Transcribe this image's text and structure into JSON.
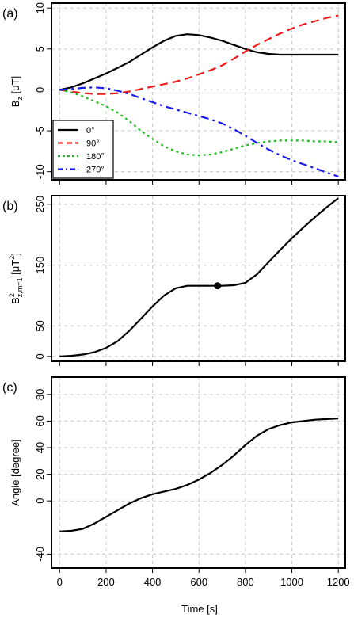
{
  "x_axis_label": "Time [s]",
  "x_ticks": [
    0,
    200,
    400,
    600,
    800,
    1000,
    1200
  ],
  "colors": {
    "0": "#000000",
    "90": "#ee1c1c",
    "180": "#22bb22",
    "270": "#1a1aee",
    "grid": "#c8c8c8"
  },
  "chart_data": [
    {
      "panel": "(a)",
      "type": "line",
      "ylabel": "B_z [μT]",
      "ylabel_main": "B",
      "ylabel_sub": "z",
      "ylabel_rest": " [μT]",
      "xlim": [
        0,
        1200
      ],
      "ylim": [
        -10,
        10
      ],
      "yticks": [
        -10,
        -5,
        0,
        5,
        10
      ],
      "grid": true,
      "legend_position": "bottom-left",
      "series": [
        {
          "name": "0°",
          "color": "#000000",
          "dash": "solid",
          "x": [
            0,
            50,
            100,
            150,
            200,
            250,
            300,
            350,
            400,
            450,
            500,
            550,
            600,
            650,
            700,
            750,
            800,
            850,
            900,
            950,
            1000,
            1050,
            1100,
            1150,
            1200
          ],
          "y": [
            0,
            0.3,
            0.8,
            1.4,
            2.0,
            2.7,
            3.4,
            4.3,
            5.2,
            6.0,
            6.6,
            6.8,
            6.7,
            6.4,
            6.0,
            5.5,
            5.0,
            4.6,
            4.4,
            4.3,
            4.3,
            4.3,
            4.3,
            4.3,
            4.3
          ]
        },
        {
          "name": "90°",
          "color": "#ee1c1c",
          "dash": "dashed",
          "x": [
            0,
            50,
            100,
            150,
            200,
            250,
            300,
            350,
            400,
            450,
            500,
            550,
            600,
            650,
            700,
            750,
            800,
            850,
            900,
            950,
            1000,
            1050,
            1100,
            1150,
            1200
          ],
          "y": [
            0,
            -0.2,
            -0.4,
            -0.5,
            -0.5,
            -0.4,
            -0.2,
            0.1,
            0.4,
            0.7,
            1.0,
            1.4,
            1.9,
            2.4,
            3.0,
            3.8,
            4.7,
            5.5,
            6.2,
            6.9,
            7.5,
            8.0,
            8.4,
            8.8,
            9.1
          ]
        },
        {
          "name": "180°",
          "color": "#22bb22",
          "dash": "dotted",
          "x": [
            0,
            50,
            100,
            150,
            200,
            250,
            300,
            350,
            400,
            450,
            500,
            550,
            600,
            650,
            700,
            750,
            800,
            850,
            900,
            950,
            1000,
            1050,
            1100,
            1150,
            1200
          ],
          "y": [
            0,
            -0.3,
            -0.8,
            -1.4,
            -2.0,
            -2.8,
            -3.8,
            -5.0,
            -6.0,
            -6.9,
            -7.5,
            -7.9,
            -8.0,
            -7.9,
            -7.6,
            -7.2,
            -6.8,
            -6.5,
            -6.3,
            -6.2,
            -6.2,
            -6.2,
            -6.3,
            -6.3,
            -6.4
          ]
        },
        {
          "name": "270°",
          "color": "#1a1aee",
          "dash": "dashdot",
          "x": [
            0,
            50,
            100,
            150,
            200,
            250,
            300,
            350,
            400,
            450,
            500,
            550,
            600,
            650,
            700,
            750,
            800,
            850,
            900,
            950,
            1000,
            1050,
            1100,
            1150,
            1200
          ],
          "y": [
            0,
            0.1,
            0.25,
            0.3,
            0.2,
            -0.1,
            -0.5,
            -1.0,
            -1.5,
            -2.0,
            -2.4,
            -2.8,
            -3.2,
            -3.6,
            -4.1,
            -4.8,
            -5.6,
            -6.5,
            -7.3,
            -8.0,
            -8.6,
            -9.1,
            -9.6,
            -10.1,
            -10.6
          ]
        }
      ]
    },
    {
      "panel": "(b)",
      "type": "line",
      "ylabel": "B²_z,m=1 [μT²]",
      "ylabel_main": "B",
      "ylabel_sup": "2",
      "ylabel_sub": "z,m=1",
      "ylabel_rest": " [μT",
      "ylabel_rest_sup": "2",
      "ylabel_close": "]",
      "xlim": [
        0,
        1200
      ],
      "ylim": [
        0,
        250
      ],
      "yticks": [
        0,
        50,
        150,
        250
      ],
      "grid": true,
      "series": [
        {
          "name": "",
          "color": "#000000",
          "dash": "solid",
          "x": [
            0,
            50,
            100,
            150,
            200,
            250,
            300,
            350,
            400,
            450,
            500,
            550,
            600,
            650,
            700,
            750,
            800,
            850,
            900,
            950,
            1000,
            1050,
            1100,
            1150,
            1200
          ],
          "y": [
            0,
            1,
            3,
            7,
            14,
            25,
            42,
            62,
            82,
            100,
            112,
            116,
            116,
            116,
            116,
            117,
            121,
            135,
            155,
            175,
            194,
            212,
            229,
            245,
            260
          ]
        }
      ],
      "marker": {
        "x": 680,
        "y": 116
      }
    },
    {
      "panel": "(c)",
      "type": "line",
      "ylabel": "Angle [degree]",
      "xlim": [
        0,
        1200
      ],
      "ylim": [
        -40,
        80
      ],
      "yticks": [
        -40,
        0,
        20,
        40,
        60,
        80
      ],
      "grid": true,
      "series": [
        {
          "name": "",
          "color": "#000000",
          "dash": "solid",
          "x": [
            0,
            50,
            100,
            150,
            200,
            250,
            300,
            350,
            400,
            450,
            500,
            550,
            600,
            650,
            700,
            750,
            800,
            850,
            900,
            950,
            1000,
            1050,
            1100,
            1150,
            1200
          ],
          "y": [
            -23,
            -22.5,
            -21,
            -17,
            -12,
            -7,
            -2,
            2,
            5,
            7,
            9,
            12,
            16,
            21,
            27,
            34,
            42,
            49,
            54,
            57,
            59,
            60,
            61,
            61.5,
            62
          ]
        }
      ]
    }
  ]
}
